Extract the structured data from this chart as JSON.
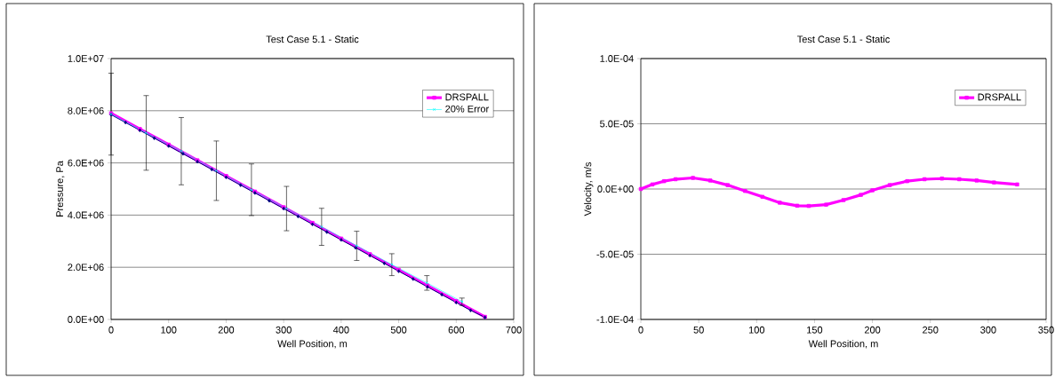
{
  "chart_data": [
    {
      "type": "line",
      "title": "Test Case 5.1 - Static",
      "xlabel": "Well Position, m",
      "ylabel": "Pressure, Pa",
      "xlim": [
        0,
        700
      ],
      "xticks": [
        0,
        100,
        200,
        300,
        400,
        500,
        600,
        700
      ],
      "ylim": [
        0,
        10000000
      ],
      "yticks": [
        {
          "value": 0,
          "label": "0.0E+00"
        },
        {
          "value": 2000000,
          "label": "2.0E+06"
        },
        {
          "value": 4000000,
          "label": "4.0E+06"
        },
        {
          "value": 6000000,
          "label": "6.0E+06"
        },
        {
          "value": 8000000,
          "label": "8.0E+06"
        },
        {
          "value": 10000000,
          "label": "1.0E+07"
        }
      ],
      "grid": "y",
      "legend": "top right",
      "line_style": "solid",
      "series": [
        {
          "name": "DRSPALL",
          "color": "#ff00ff",
          "marker": "square",
          "x": [
            0,
            50,
            100,
            150,
            200,
            250,
            300,
            350,
            400,
            450,
            500,
            550,
            600,
            650
          ],
          "values": [
            7900000,
            7300000,
            6700000,
            6100000,
            5500000,
            4900000,
            4300000,
            3700000,
            3100000,
            2500000,
            1900000,
            1300000,
            700000,
            100000
          ]
        },
        {
          "color": "#000080",
          "marker": "diamond",
          "x": [
            0,
            25,
            50,
            75,
            100,
            125,
            150,
            175,
            200,
            225,
            250,
            275,
            300,
            325,
            350,
            375,
            400,
            425,
            450,
            475,
            500,
            525,
            550,
            575,
            600,
            625,
            650
          ],
          "values": [
            7850000,
            7550000,
            7250000,
            6950000,
            6650000,
            6350000,
            6050000,
            5750000,
            5450000,
            5150000,
            4850000,
            4550000,
            4250000,
            3950000,
            3650000,
            3350000,
            3050000,
            2750000,
            2450000,
            2150000,
            1850000,
            1550000,
            1250000,
            950000,
            650000,
            350000,
            80000
          ]
        },
        {
          "name": "20% Error",
          "color": "#00ffff",
          "marker": "cross",
          "x": [
            0,
            61,
            122,
            183,
            244,
            305,
            366,
            427,
            488,
            549,
            610
          ],
          "values": [
            7870000,
            7150000,
            6450000,
            5700000,
            4970000,
            4250000,
            3550000,
            2820000,
            2100000,
            1400000,
            680000
          ],
          "errors": [
            1570000,
            1430000,
            1290000,
            1140000,
            990000,
            850000,
            710000,
            560000,
            420000,
            280000,
            140000
          ]
        }
      ]
    },
    {
      "type": "line",
      "title": "Test Case 5.1 - Static",
      "xlabel": "Well Position, m",
      "ylabel": "Velocity, m/s",
      "xlim": [
        0,
        350
      ],
      "xticks": [
        0,
        50,
        100,
        150,
        200,
        250,
        300,
        350
      ],
      "ylim": [
        -0.0001,
        0.0001
      ],
      "yticks": [
        {
          "value": -0.0001,
          "label": "-1.0E-04"
        },
        {
          "value": -5e-05,
          "label": "-5.0E-05"
        },
        {
          "value": 0,
          "label": "0.0E+00"
        },
        {
          "value": 5e-05,
          "label": "5.0E-05"
        },
        {
          "value": 0.0001,
          "label": "1.0E-04"
        }
      ],
      "grid": "y",
      "legend": "top right",
      "line_style": "solid",
      "series": [
        {
          "name": "DRSPALL",
          "color": "#ff00ff",
          "marker": "square",
          "x": [
            0,
            10,
            20,
            30,
            45,
            60,
            75,
            90,
            105,
            120,
            135,
            145,
            160,
            175,
            190,
            200,
            215,
            230,
            245,
            260,
            275,
            290,
            305,
            325
          ],
          "values": [
            0,
            3.5e-06,
            6e-06,
            7.5e-06,
            8.5e-06,
            6.5e-06,
            3e-06,
            -1.5e-06,
            -6e-06,
            -1.05e-05,
            -1.28e-05,
            -1.3e-05,
            -1.2e-05,
            -8.5e-06,
            -4.5e-06,
            -1e-06,
            3e-06,
            6e-06,
            7.5e-06,
            8e-06,
            7.5e-06,
            6.5e-06,
            5e-06,
            3.5e-06
          ]
        }
      ]
    }
  ]
}
